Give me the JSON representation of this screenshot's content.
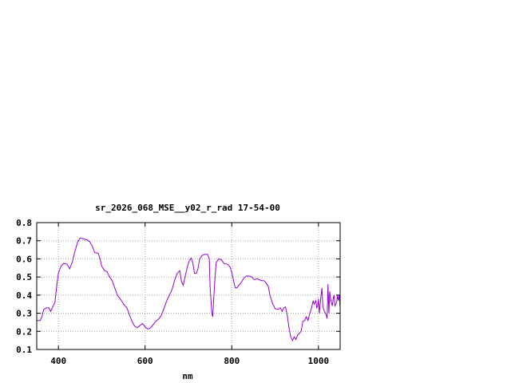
{
  "chart_data": {
    "type": "line",
    "title": "sr_2026_068_MSE__y02_r_rad 17-54-00",
    "xlabel": "nm",
    "ylabel": "",
    "xlim": [
      350,
      1050
    ],
    "ylim": [
      0.1,
      0.8
    ],
    "grid": true,
    "x_ticks": [
      400,
      600,
      800,
      1000
    ],
    "x_tick_labels": [
      "400",
      "600",
      "800",
      "1000"
    ],
    "y_ticks": [
      0.1,
      0.2,
      0.3,
      0.4,
      0.5,
      0.6,
      0.7,
      0.8
    ],
    "y_tick_labels": [
      "0.1",
      "0.2",
      "0.3",
      "0.4",
      "0.5",
      "0.6",
      "0.7",
      "0.8"
    ],
    "series": [
      {
        "name": "",
        "color": "#9400d3",
        "points": [
          [
            350,
            0.26
          ],
          [
            358,
            0.26
          ],
          [
            362,
            0.28
          ],
          [
            366,
            0.32
          ],
          [
            372,
            0.33
          ],
          [
            378,
            0.33
          ],
          [
            382,
            0.31
          ],
          [
            386,
            0.33
          ],
          [
            392,
            0.36
          ],
          [
            396,
            0.45
          ],
          [
            400,
            0.52
          ],
          [
            406,
            0.56
          ],
          [
            412,
            0.575
          ],
          [
            420,
            0.57
          ],
          [
            426,
            0.545
          ],
          [
            432,
            0.58
          ],
          [
            438,
            0.64
          ],
          [
            444,
            0.69
          ],
          [
            450,
            0.715
          ],
          [
            458,
            0.71
          ],
          [
            466,
            0.705
          ],
          [
            472,
            0.695
          ],
          [
            478,
            0.67
          ],
          [
            484,
            0.635
          ],
          [
            492,
            0.63
          ],
          [
            496,
            0.6
          ],
          [
            500,
            0.56
          ],
          [
            506,
            0.535
          ],
          [
            512,
            0.53
          ],
          [
            518,
            0.5
          ],
          [
            524,
            0.48
          ],
          [
            530,
            0.44
          ],
          [
            536,
            0.4
          ],
          [
            544,
            0.375
          ],
          [
            552,
            0.345
          ],
          [
            558,
            0.33
          ],
          [
            564,
            0.29
          ],
          [
            570,
            0.255
          ],
          [
            576,
            0.228
          ],
          [
            582,
            0.22
          ],
          [
            588,
            0.232
          ],
          [
            594,
            0.243
          ],
          [
            600,
            0.225
          ],
          [
            606,
            0.213
          ],
          [
            612,
            0.218
          ],
          [
            618,
            0.235
          ],
          [
            624,
            0.255
          ],
          [
            632,
            0.27
          ],
          [
            638,
            0.29
          ],
          [
            644,
            0.33
          ],
          [
            650,
            0.37
          ],
          [
            656,
            0.4
          ],
          [
            662,
            0.43
          ],
          [
            668,
            0.48
          ],
          [
            674,
            0.52
          ],
          [
            680,
            0.535
          ],
          [
            684,
            0.475
          ],
          [
            688,
            0.455
          ],
          [
            692,
            0.5
          ],
          [
            698,
            0.56
          ],
          [
            702,
            0.59
          ],
          [
            706,
            0.605
          ],
          [
            710,
            0.58
          ],
          [
            714,
            0.52
          ],
          [
            718,
            0.52
          ],
          [
            722,
            0.545
          ],
          [
            726,
            0.6
          ],
          [
            732,
            0.62
          ],
          [
            738,
            0.625
          ],
          [
            744,
            0.625
          ],
          [
            748,
            0.6
          ],
          [
            750,
            0.45
          ],
          [
            754,
            0.3
          ],
          [
            756,
            0.28
          ],
          [
            760,
            0.45
          ],
          [
            764,
            0.58
          ],
          [
            770,
            0.6
          ],
          [
            776,
            0.595
          ],
          [
            782,
            0.575
          ],
          [
            790,
            0.57
          ],
          [
            796,
            0.555
          ],
          [
            800,
            0.525
          ],
          [
            804,
            0.48
          ],
          [
            808,
            0.44
          ],
          [
            812,
            0.44
          ],
          [
            816,
            0.455
          ],
          [
            822,
            0.47
          ],
          [
            828,
            0.495
          ],
          [
            834,
            0.505
          ],
          [
            840,
            0.505
          ],
          [
            846,
            0.5
          ],
          [
            852,
            0.485
          ],
          [
            858,
            0.49
          ],
          [
            864,
            0.485
          ],
          [
            868,
            0.48
          ],
          [
            874,
            0.48
          ],
          [
            878,
            0.47
          ],
          [
            884,
            0.45
          ],
          [
            888,
            0.4
          ],
          [
            894,
            0.355
          ],
          [
            900,
            0.325
          ],
          [
            906,
            0.32
          ],
          [
            912,
            0.33
          ],
          [
            916,
            0.31
          ],
          [
            920,
            0.33
          ],
          [
            924,
            0.335
          ],
          [
            928,
            0.29
          ],
          [
            932,
            0.22
          ],
          [
            936,
            0.17
          ],
          [
            940,
            0.15
          ],
          [
            944,
            0.17
          ],
          [
            948,
            0.155
          ],
          [
            952,
            0.18
          ],
          [
            956,
            0.19
          ],
          [
            960,
            0.2
          ],
          [
            964,
            0.255
          ],
          [
            968,
            0.26
          ],
          [
            972,
            0.28
          ],
          [
            976,
            0.26
          ],
          [
            980,
            0.3
          ],
          [
            984,
            0.33
          ],
          [
            988,
            0.37
          ],
          [
            990,
            0.35
          ],
          [
            994,
            0.37
          ],
          [
            996,
            0.33
          ],
          [
            998,
            0.34
          ],
          [
            1000,
            0.38
          ],
          [
            1002,
            0.3
          ],
          [
            1004,
            0.35
          ],
          [
            1006,
            0.4
          ],
          [
            1008,
            0.44
          ],
          [
            1010,
            0.34
          ],
          [
            1012,
            0.32
          ],
          [
            1014,
            0.31
          ],
          [
            1016,
            0.3
          ],
          [
            1018,
            0.29
          ],
          [
            1020,
            0.27
          ],
          [
            1022,
            0.46
          ],
          [
            1024,
            0.3
          ],
          [
            1026,
            0.42
          ],
          [
            1028,
            0.38
          ],
          [
            1030,
            0.36
          ],
          [
            1032,
            0.34
          ],
          [
            1034,
            0.38
          ],
          [
            1036,
            0.4
          ],
          [
            1038,
            0.34
          ],
          [
            1040,
            0.35
          ],
          [
            1042,
            0.36
          ],
          [
            1044,
            0.4
          ],
          [
            1046,
            0.37
          ],
          [
            1048,
            0.4
          ],
          [
            1050,
            0.33
          ]
        ]
      }
    ]
  }
}
